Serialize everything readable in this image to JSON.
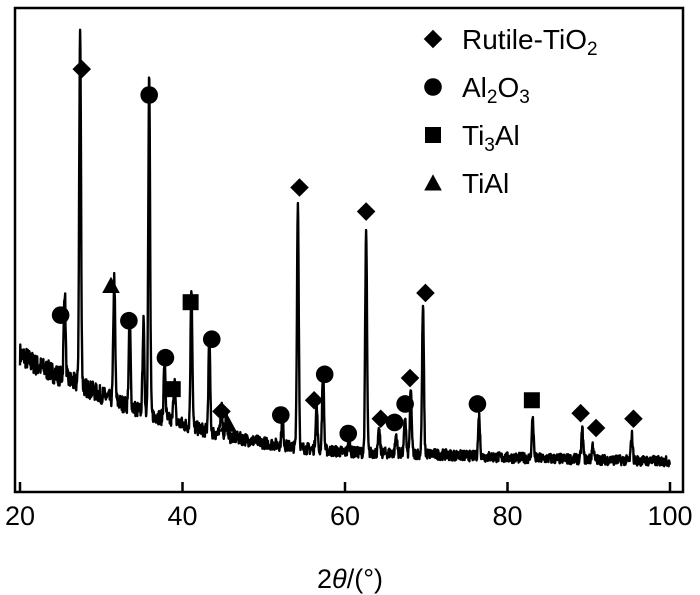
{
  "chart_data": {
    "type": "line",
    "title": "",
    "xlabel_pre": "2",
    "xlabel_italic": "θ",
    "xlabel_post": "/(°)",
    "ylabel": "",
    "xlim": [
      20,
      100
    ],
    "x_ticks": [
      20,
      40,
      60,
      80,
      100
    ],
    "x_tick_labels": [
      "20",
      "40",
      "60",
      "80",
      "100"
    ],
    "y_ticks_shown": false,
    "grid": false,
    "legend_position": "top-right",
    "color": "#000000",
    "legend": [
      {
        "symbol": "diamond",
        "parts": [
          {
            "t": "Rutile-TiO",
            "s": false
          },
          {
            "t": "2",
            "s": true
          }
        ]
      },
      {
        "symbol": "circle",
        "parts": [
          {
            "t": "Al",
            "s": false
          },
          {
            "t": "2",
            "s": true
          },
          {
            "t": "O",
            "s": false
          },
          {
            "t": "3",
            "s": true
          }
        ]
      },
      {
        "symbol": "square",
        "parts": [
          {
            "t": "Ti",
            "s": false
          },
          {
            "t": "3",
            "s": true
          },
          {
            "t": "Al",
            "s": false
          }
        ]
      },
      {
        "symbol": "triangle",
        "parts": [
          {
            "t": "TiAl",
            "s": false
          }
        ]
      }
    ],
    "baseline": {
      "x": [
        20,
        22,
        25,
        28,
        31,
        35,
        40,
        45,
        50,
        55,
        60,
        70,
        80,
        90,
        100
      ],
      "y": [
        0.3,
        0.27,
        0.24,
        0.21,
        0.18,
        0.145,
        0.11,
        0.08,
        0.06,
        0.045,
        0.035,
        0.03,
        0.02,
        0.015,
        0.01
      ]
    },
    "noise": 0.022,
    "peaks": [
      {
        "x": 25.5,
        "y": 0.24,
        "phase": "Al2O3"
      },
      {
        "x": 27.4,
        "y": 0.96,
        "phase": "Rutile-TiO2"
      },
      {
        "x": 31.6,
        "y": 0.33,
        "phase": "TiAl"
      },
      {
        "x": 33.5,
        "y": 0.24,
        "phase": "Al2O3"
      },
      {
        "x": 35.2,
        "y": 0.24,
        "phase": "Al2O3"
      },
      {
        "x": 35.9,
        "y": 0.91,
        "phase": "Al2O3"
      },
      {
        "x": 37.8,
        "y": 0.16,
        "phase": "Al2O3"
      },
      {
        "x": 39.0,
        "y": 0.12,
        "phase": "Ti3Al"
      },
      {
        "x": 41.1,
        "y": 0.38,
        "phase": "Ti3Al"
      },
      {
        "x": 43.3,
        "y": 0.25,
        "phase": "Al2O3"
      },
      {
        "x": 44.8,
        "y": 0.08,
        "phase": "Rutile-TiO2"
      },
      {
        "x": 45.4,
        "y": 0.06,
        "phase": "TiAl"
      },
      {
        "x": 52.3,
        "y": 0.08,
        "phase": "Al2O3"
      },
      {
        "x": 54.2,
        "y": 0.66,
        "phase": "Rutile-TiO2"
      },
      {
        "x": 56.5,
        "y": 0.12,
        "phase": "Rutile-TiO2"
      },
      {
        "x": 57.3,
        "y": 0.22,
        "phase": "Al2O3"
      },
      {
        "x": 60.5,
        "y": 0.04,
        "phase": "Al2O3"
      },
      {
        "x": 62.6,
        "y": 0.6,
        "phase": "Rutile-TiO2"
      },
      {
        "x": 64.2,
        "y": 0.06,
        "phase": "Rutile-TiO2"
      },
      {
        "x": 66.3,
        "y": 0.05,
        "phase": "Al2O3"
      },
      {
        "x": 67.4,
        "y": 0.1,
        "phase": "Al2O3"
      },
      {
        "x": 68.1,
        "y": 0.17,
        "phase": "Rutile-TiO2"
      },
      {
        "x": 69.6,
        "y": 0.4,
        "phase": "Rutile-TiO2"
      },
      {
        "x": 76.5,
        "y": 0.11,
        "phase": "Al2O3"
      },
      {
        "x": 83.1,
        "y": 0.11,
        "phase": "Ti3Al"
      },
      {
        "x": 89.2,
        "y": 0.08,
        "phase": "Rutile-TiO2"
      },
      {
        "x": 90.5,
        "y": 0.04,
        "phase": "Rutile-TiO2"
      },
      {
        "x": 95.3,
        "y": 0.07,
        "phase": "Rutile-TiO2"
      }
    ],
    "markers": [
      {
        "symbol": "circle",
        "x": 25.0,
        "y": 0.405
      },
      {
        "symbol": "diamond",
        "x": 27.6,
        "y": 1.07
      },
      {
        "symbol": "triangle",
        "x": 31.2,
        "y": 0.485
      },
      {
        "symbol": "circle",
        "x": 33.4,
        "y": 0.39
      },
      {
        "symbol": "circle",
        "x": 35.9,
        "y": 1.0
      },
      {
        "symbol": "circle",
        "x": 37.9,
        "y": 0.29
      },
      {
        "symbol": "square",
        "x": 38.8,
        "y": 0.205
      },
      {
        "symbol": "square",
        "x": 41.0,
        "y": 0.44
      },
      {
        "symbol": "circle",
        "x": 43.6,
        "y": 0.34
      },
      {
        "symbol": "diamond",
        "x": 44.8,
        "y": 0.145
      },
      {
        "symbol": "triangle",
        "x": 45.6,
        "y": 0.11
      },
      {
        "symbol": "circle",
        "x": 52.1,
        "y": 0.135
      },
      {
        "symbol": "diamond",
        "x": 54.4,
        "y": 0.75
      },
      {
        "symbol": "diamond",
        "x": 56.2,
        "y": 0.175
      },
      {
        "symbol": "circle",
        "x": 57.5,
        "y": 0.245
      },
      {
        "symbol": "circle",
        "x": 60.4,
        "y": 0.085
      },
      {
        "symbol": "diamond",
        "x": 62.6,
        "y": 0.685
      },
      {
        "symbol": "diamond",
        "x": 64.4,
        "y": 0.125
      },
      {
        "symbol": "circle",
        "x": 66.1,
        "y": 0.115
      },
      {
        "symbol": "circle",
        "x": 67.4,
        "y": 0.165
      },
      {
        "symbol": "diamond",
        "x": 68.0,
        "y": 0.235
      },
      {
        "symbol": "diamond",
        "x": 69.9,
        "y": 0.465
      },
      {
        "symbol": "circle",
        "x": 76.3,
        "y": 0.165
      },
      {
        "symbol": "square",
        "x": 83.0,
        "y": 0.175
      },
      {
        "symbol": "diamond",
        "x": 89.0,
        "y": 0.14
      },
      {
        "symbol": "diamond",
        "x": 90.9,
        "y": 0.1
      },
      {
        "symbol": "diamond",
        "x": 95.5,
        "y": 0.125
      }
    ]
  }
}
